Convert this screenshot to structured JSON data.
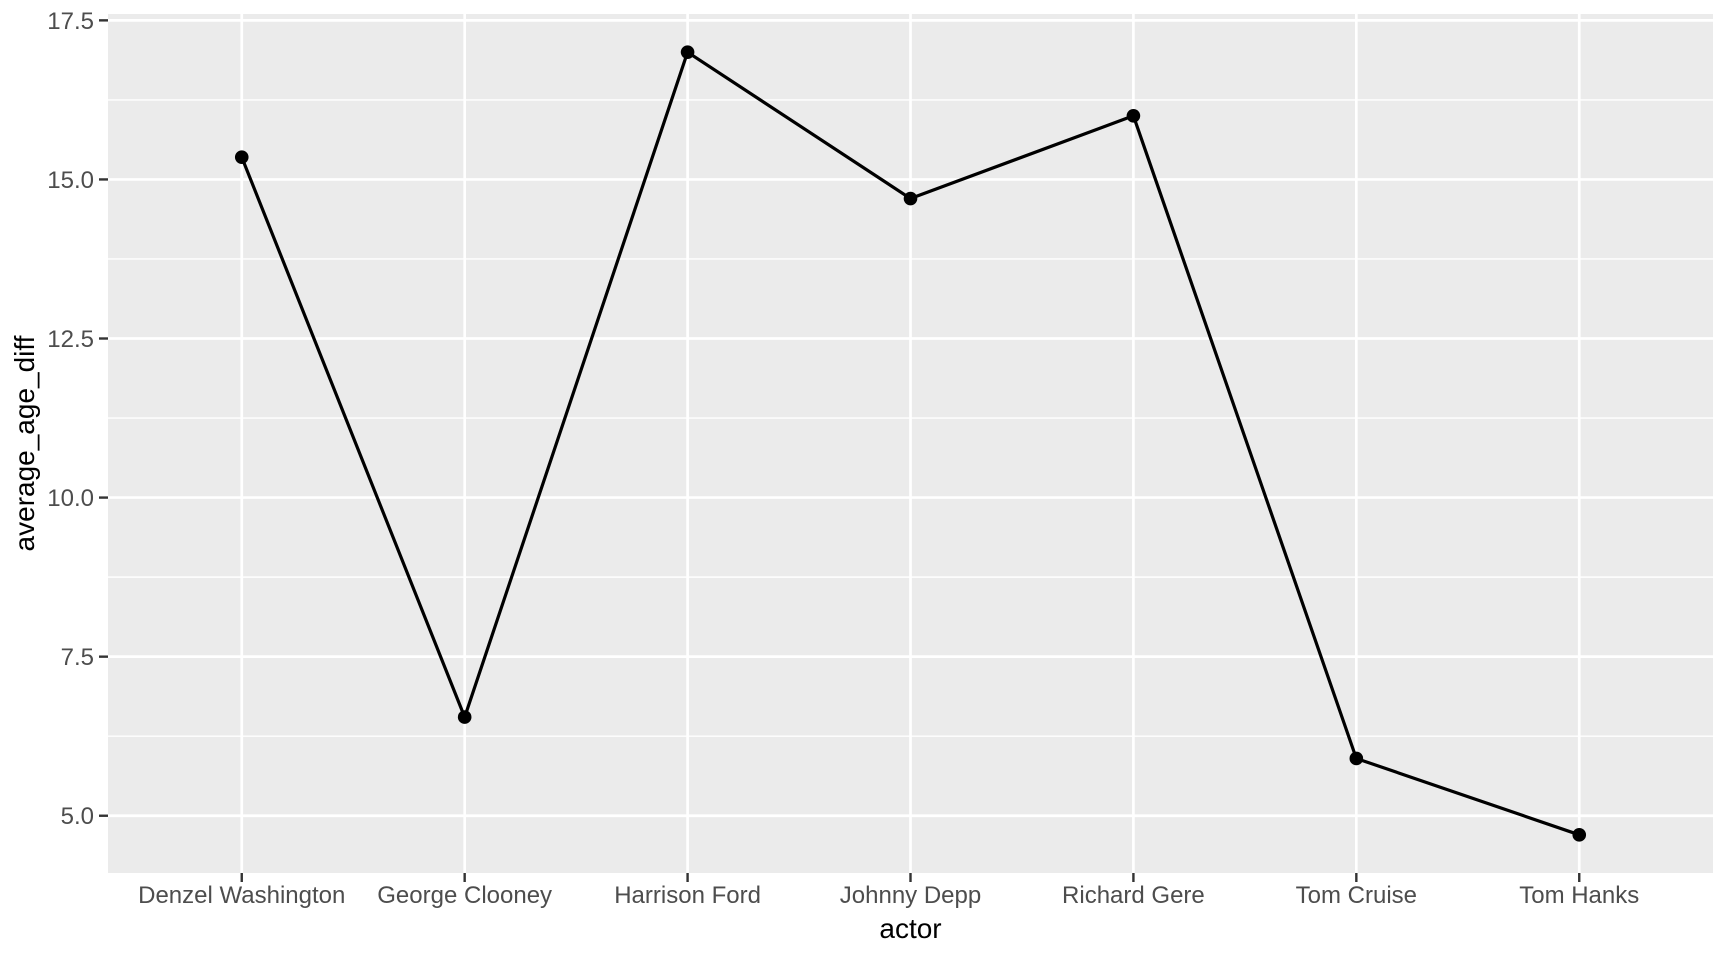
{
  "chart_data": {
    "type": "line",
    "title": "",
    "xlabel": "actor",
    "ylabel": "average_age_diff",
    "categories": [
      "Denzel Washington",
      "George Clooney",
      "Harrison Ford",
      "Johnny Depp",
      "Richard Gere",
      "Tom Cruise",
      "Tom Hanks"
    ],
    "values": [
      15.35,
      6.55,
      17.0,
      14.7,
      16.0,
      5.9,
      4.7
    ],
    "series_name": "average_age_diff",
    "ylim": [
      4.1,
      17.6
    ],
    "y_ticks": [
      5.0,
      7.5,
      10.0,
      12.5,
      15.0,
      17.5
    ],
    "y_tick_labels": [
      "5.0",
      "7.5",
      "10.0",
      "12.5",
      "15.0",
      "17.5"
    ],
    "y_minor_ticks": [
      6.25,
      8.75,
      11.25,
      13.75,
      16.25
    ],
    "grid": "major-and-minor-horizontal, major-vertical-per-category",
    "legend": "none",
    "style": "ggplot2 theme_grey",
    "colors": {
      "panel_background": "#EBEBEB",
      "grid_line": "#FFFFFF",
      "data_line": "#000000",
      "data_point": "#000000",
      "tick_label": "#4D4D4D",
      "axis_title": "#000000",
      "tick_mark": "#333333",
      "page_background": "#FFFFFF"
    }
  }
}
